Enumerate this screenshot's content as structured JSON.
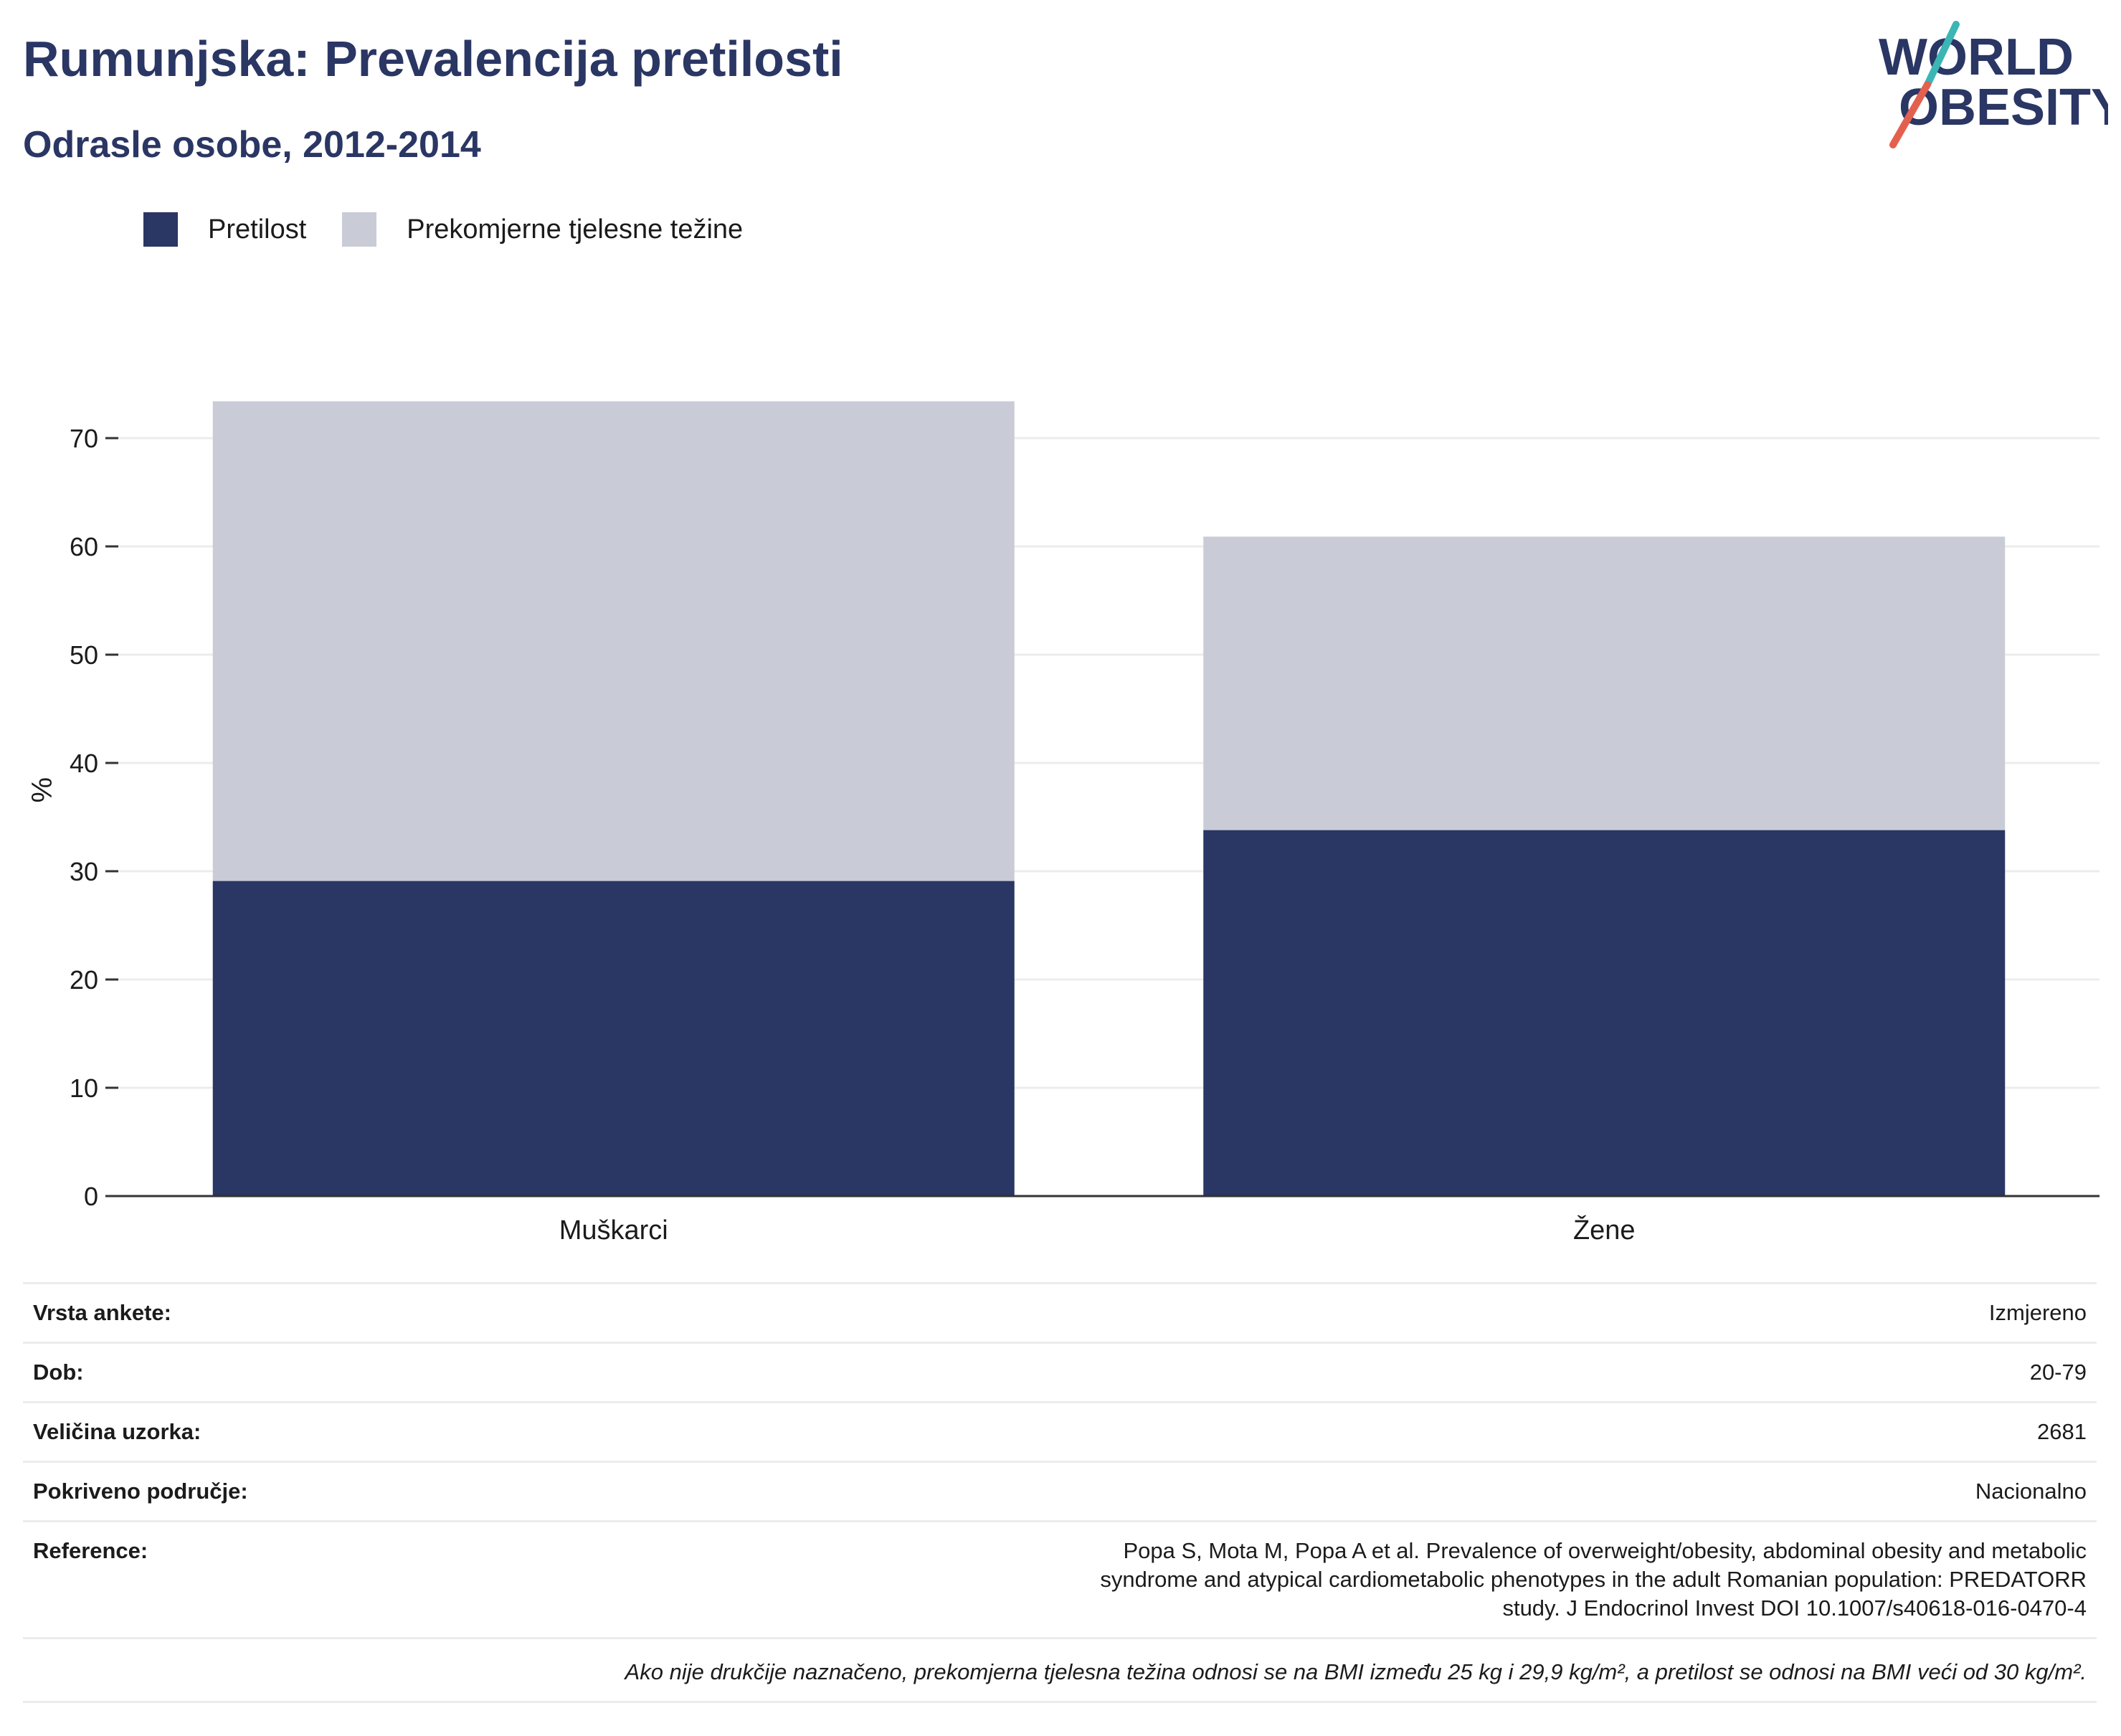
{
  "header": {
    "title": "Rumunjska: Prevalencija pretilosti",
    "subtitle": "Odrasle osobe, 2012-2014"
  },
  "logo": {
    "line1": "WORLD",
    "line2": "OBESITY",
    "colors": {
      "text": "#2a3663",
      "slash_top": "#3cb5b5",
      "slash_bottom": "#e4604e"
    }
  },
  "legend": [
    {
      "label": "Pretilost",
      "color": "#2a3663"
    },
    {
      "label": "Prekomjerne tjelesne težine",
      "color": "#c9cbd7"
    }
  ],
  "chart_data": {
    "type": "bar",
    "stacked": true,
    "categories": [
      "Muškarci",
      "Žene"
    ],
    "series": [
      {
        "name": "Pretilost",
        "values": [
          29.1,
          33.8
        ],
        "color": "#2a3663"
      },
      {
        "name": "Prekomjerne tjelesne težine",
        "values": [
          44.3,
          27.1
        ],
        "color": "#c9cbd7"
      }
    ],
    "xlabel": "",
    "ylabel": "%",
    "ylim": [
      0,
      75
    ],
    "yticks": [
      0,
      10,
      20,
      30,
      40,
      50,
      60,
      70
    ],
    "grid": true,
    "legend_position": "top-left"
  },
  "info_table": {
    "rows": [
      {
        "label": "Vrsta ankete:",
        "value": "Izmjereno"
      },
      {
        "label": "Dob:",
        "value": "20-79"
      },
      {
        "label": "Veličina uzorka:",
        "value": "2681"
      },
      {
        "label": "Pokriveno područje:",
        "value": "Nacionalno"
      },
      {
        "label": "Reference:",
        "value": "Popa S, Mota M, Popa A et al. Prevalence of overweight/obesity, abdominal obesity and metabolic syndrome and atypical cardiometabolic phenotypes in the adult Romanian population: PREDATORR study. J Endocrinol Invest DOI 10.1007/s40618-016-0470-4"
      }
    ],
    "note": "Ako nije drukčije naznačeno, prekomjerna tjelesna težina odnosi se na BMI između 25 kg i 29,9 kg/m², a pretilost se odnosi na BMI veći od 30 kg/m²."
  }
}
